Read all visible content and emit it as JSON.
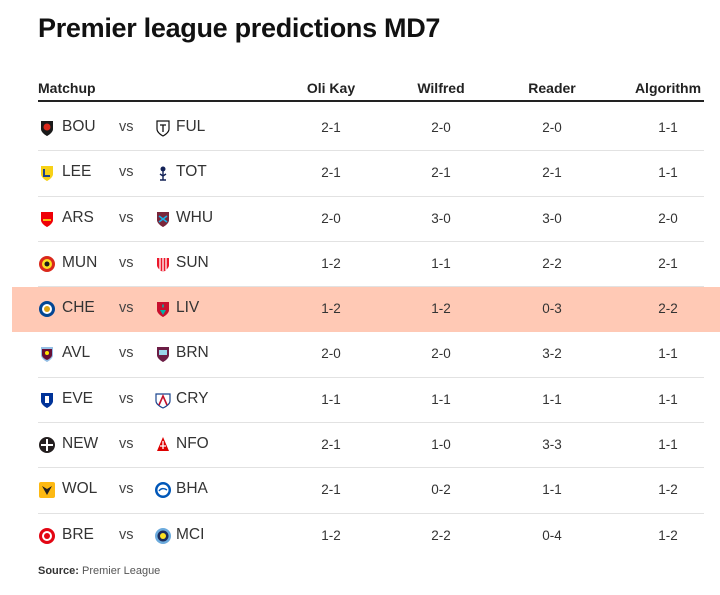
{
  "title": "Premier league predictions MD7",
  "headers": {
    "matchup": "Matchup",
    "oli_kay": "Oli Kay",
    "wilfred": "Wilfred",
    "reader": "Reader",
    "algorithm": "Algorithm"
  },
  "rows": [
    {
      "home": "BOU",
      "vs": "vs",
      "away": "FUL",
      "oli_kay": "2-1",
      "wilfred": "2-0",
      "reader": "2-0",
      "algorithm": "1-1",
      "home_badge": "bournemouth-crest-icon",
      "away_badge": "fulham-crest-icon"
    },
    {
      "home": "LEE",
      "vs": "vs",
      "away": "TOT",
      "oli_kay": "2-1",
      "wilfred": "2-1",
      "reader": "2-1",
      "algorithm": "1-1",
      "home_badge": "leeds-crest-icon",
      "away_badge": "tottenham-crest-icon"
    },
    {
      "home": "ARS",
      "vs": "vs",
      "away": "WHU",
      "oli_kay": "2-0",
      "wilfred": "3-0",
      "reader": "3-0",
      "algorithm": "2-0",
      "home_badge": "arsenal-crest-icon",
      "away_badge": "west-ham-crest-icon"
    },
    {
      "home": "MUN",
      "vs": "vs",
      "away": "SUN",
      "oli_kay": "1-2",
      "wilfred": "1-1",
      "reader": "2-2",
      "algorithm": "2-1",
      "home_badge": "man-utd-crest-icon",
      "away_badge": "sunderland-crest-icon"
    },
    {
      "home": "CHE",
      "vs": "vs",
      "away": "LIV",
      "oli_kay": "1-2",
      "wilfred": "1-2",
      "reader": "0-3",
      "algorithm": "2-2",
      "home_badge": "chelsea-crest-icon",
      "away_badge": "liverpool-crest-icon",
      "highlighted": true
    },
    {
      "home": "AVL",
      "vs": "vs",
      "away": "BRN",
      "oli_kay": "2-0",
      "wilfred": "2-0",
      "reader": "3-2",
      "algorithm": "1-1",
      "home_badge": "aston-villa-crest-icon",
      "away_badge": "burnley-crest-icon"
    },
    {
      "home": "EVE",
      "vs": "vs",
      "away": "CRY",
      "oli_kay": "1-1",
      "wilfred": "1-1",
      "reader": "1-1",
      "algorithm": "1-1",
      "home_badge": "everton-crest-icon",
      "away_badge": "crystal-palace-crest-icon"
    },
    {
      "home": "NEW",
      "vs": "vs",
      "away": "NFO",
      "oli_kay": "2-1",
      "wilfred": "1-0",
      "reader": "3-3",
      "algorithm": "1-1",
      "home_badge": "newcastle-crest-icon",
      "away_badge": "nottingham-forest-crest-icon"
    },
    {
      "home": "WOL",
      "vs": "vs",
      "away": "BHA",
      "oli_kay": "2-1",
      "wilfred": "0-2",
      "reader": "1-1",
      "algorithm": "1-2",
      "home_badge": "wolves-crest-icon",
      "away_badge": "brighton-crest-icon"
    },
    {
      "home": "BRE",
      "vs": "vs",
      "away": "MCI",
      "oli_kay": "1-2",
      "wilfred": "2-2",
      "reader": "0-4",
      "algorithm": "1-2",
      "home_badge": "brentford-crest-icon",
      "away_badge": "man-city-crest-icon"
    }
  ],
  "source": {
    "label": "Source:",
    "text": "Premier League"
  },
  "colors": {
    "highlight": "#ffc9b5",
    "header_rule": "#222222",
    "row_rule": "#e2e2e2"
  }
}
